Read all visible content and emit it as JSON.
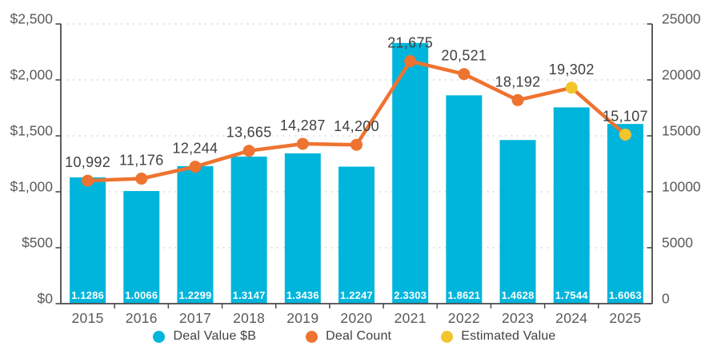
{
  "chart_data": {
    "type": "bar",
    "subtype": "bar-line-combo",
    "title": "",
    "categories": [
      "2015",
      "2016",
      "2017",
      "2018",
      "2019",
      "2020",
      "2021",
      "2022",
      "2023",
      "2024",
      "2025"
    ],
    "series": [
      {
        "name": "Deal Value $B",
        "type": "bar",
        "axis": "left",
        "color": "#00B5DB",
        "values": [
          1128.6,
          1006.6,
          1229.9,
          1314.7,
          1343.6,
          1224.7,
          2330.3,
          1862.1,
          1462.8,
          1754.4,
          1606.3
        ],
        "labels": [
          "1.1286",
          "1.0066",
          "1.2299",
          "1.3147",
          "1.3436",
          "1.2247",
          "2.3303",
          "1.8621",
          "1.4628",
          "1.7544",
          "1.6063"
        ]
      },
      {
        "name": "Deal Count",
        "type": "line",
        "axis": "right",
        "color": "#EE7330",
        "values": [
          10992,
          11176,
          12244,
          13665,
          14287,
          14200,
          21675,
          20521,
          18192,
          19302,
          15107
        ],
        "labels": [
          "10,992",
          "11,176",
          "12,244",
          "13,665",
          "14,287",
          "14,200",
          "21,675",
          "20,521",
          "18,192",
          "19,302",
          "15,107"
        ],
        "estimated_mask": [
          false,
          false,
          false,
          false,
          false,
          false,
          false,
          false,
          false,
          true,
          true
        ]
      },
      {
        "name": "Estimated Value",
        "type": "point",
        "color": "#F2C52D"
      }
    ],
    "left_axis": {
      "min": 0,
      "max": 2500,
      "tick_values": [
        0,
        500,
        1000,
        1500,
        2000,
        2500
      ],
      "ticks": [
        "$0",
        "$500",
        "$1,000",
        "$1,500",
        "$2,000",
        "$2,500"
      ]
    },
    "right_axis": {
      "min": 0,
      "max": 25000,
      "tick_values": [
        0,
        5000,
        10000,
        15000,
        20000,
        25000
      ],
      "ticks": [
        "0",
        "5000",
        "10000",
        "15000",
        "20000",
        "25000"
      ]
    },
    "grid": "dotted-horizontal",
    "legend_position": "bottom",
    "legend": [
      {
        "label": "Deal Value $B",
        "color": "#00B5DB"
      },
      {
        "label": "Deal Count",
        "color": "#EE7330"
      },
      {
        "label": "Estimated Value",
        "color": "#F2C52D"
      }
    ],
    "colors": {
      "bar": "#00B5DB",
      "line": "#EE7330",
      "estimated_point": "#F2C52D",
      "axis_line": "#4A4A4C",
      "grid_line": "#D8D8D8",
      "axis_tick_text": "#58595B",
      "category_text": "#58595B",
      "data_label_text": "#3F4042",
      "bar_label_text": "#FFFFFF"
    }
  }
}
